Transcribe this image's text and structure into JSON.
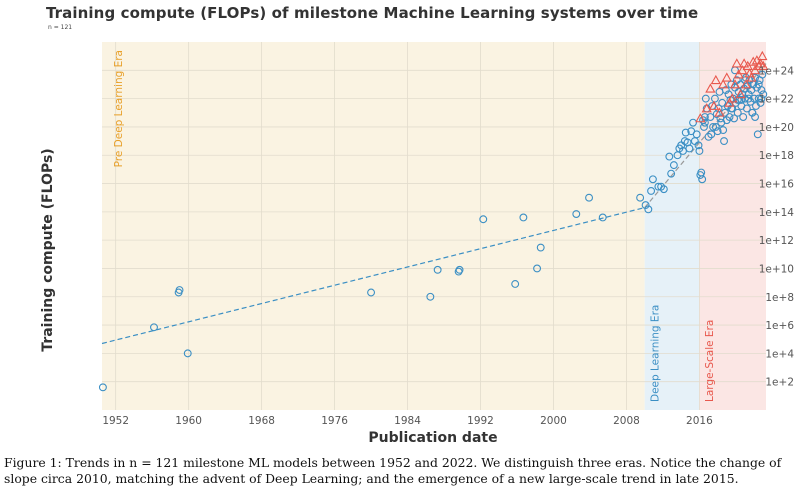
{
  "chart_data": {
    "type": "scatter",
    "title": "Training compute (FLOPs) of milestone Machine Learning systems over time",
    "subtitle": "n = 121",
    "xlabel": "Publication date",
    "ylabel": "Training compute (FLOPs)",
    "xlim": [
      1950.5,
      2023.3
    ],
    "ylim": [
      1,
      100000000000000000000000000
    ],
    "yscale": "log",
    "x_ticks": [
      1952,
      1960,
      1968,
      1976,
      1984,
      1992,
      2000,
      2008,
      2016
    ],
    "y_ticks": [
      "1e+2",
      "1e+4",
      "1e+6",
      "1e+8",
      "1e+10",
      "1e+12",
      "1e+14",
      "1e+16",
      "1e+18",
      "1e+20",
      "1e+22",
      "1e+24"
    ],
    "grid": true,
    "colors": {
      "pre_dl": "#e8a02a",
      "dl": "#3b8fc4",
      "large_scale": "#e8584d",
      "bg_pre_dl": "#faf3e2",
      "bg_dl": "#e6f1f8",
      "bg_large_scale": "#fbe6e4"
    },
    "eras": [
      {
        "label": "Pre Deep Learning Era",
        "from": 1950.5,
        "to": 2010,
        "color": "#e8a02a",
        "bg": "#faf3e2"
      },
      {
        "label": "Deep Learning Era",
        "from": 2010,
        "to": 2016,
        "color": "#3b8fc4",
        "bg": "#e6f1f8"
      },
      {
        "label": "Large-Scale Era",
        "from": 2016,
        "to": 2023.3,
        "color": "#e8584d",
        "bg": "#fbe6e4"
      }
    ],
    "trend_lines": [
      {
        "x": [
          1950.5,
          2010
        ],
        "y": [
          50000,
          200000000000000
        ],
        "color": "#3b8fc4"
      },
      {
        "x": [
          2010,
          2023.3
        ],
        "y": [
          200000000000000,
          3000000000000000000000000
        ],
        "color": "#999999"
      }
    ],
    "series": [
      {
        "marker": "circle",
        "color": "#3b8fc4",
        "x": [
          1950.6,
          1956.2,
          1958.9,
          1959.0,
          1959.9,
          1980.0,
          1986.5,
          1987.3,
          1989.6,
          1989.7,
          1992.3,
          1995.8,
          1996.7,
          1998.2,
          1998.6,
          2002.5,
          2003.9,
          2005.4,
          2009.5,
          2010.1,
          2010.4,
          2010.7,
          2010.9,
          2011.5,
          2011.8,
          2012.1,
          2012.7,
          2012.9,
          2013.2,
          2013.6,
          2013.8,
          2014.0,
          2014.2,
          2014.4,
          2014.5,
          2014.7,
          2014.9,
          2015.1,
          2015.3,
          2015.5,
          2015.7,
          2015.9,
          2016.0,
          2016.1,
          2016.2,
          2016.3,
          2016.5,
          2016.6,
          2016.7,
          2016.8,
          2017.0,
          2017.2,
          2017.4,
          2017.5,
          2017.7,
          2017.9,
          2018.0,
          2018.1,
          2018.2,
          2018.4,
          2018.5,
          2018.6,
          2018.8,
          2018.9,
          2019.0,
          2019.1,
          2019.2,
          2019.3,
          2019.4,
          2019.5,
          2019.6,
          2019.7,
          2019.8,
          2019.9,
          2020.0,
          2020.1,
          2020.2,
          2020.3,
          2020.4,
          2020.5,
          2020.6,
          2020.7,
          2020.8,
          2020.9,
          2021.0,
          2021.1,
          2021.2,
          2021.3,
          2021.4,
          2021.5,
          2021.6,
          2021.7,
          2021.8,
          2021.9,
          2022.0,
          2022.1,
          2022.2,
          2022.3,
          2022.4,
          2022.5,
          2022.6,
          2022.7,
          2022.8,
          2022.9,
          2023.0,
          2016.4,
          2016.6,
          2017.3,
          2018.3,
          2019.5,
          2020.2,
          2021.0,
          2021.8,
          2022.5,
          2019.9,
          2020.6,
          2021.4,
          2022.1,
          2022.8,
          2018.7,
          2017.8
        ],
        "y": [
          40,
          700000,
          200000000,
          300000000,
          10000,
          200000000,
          100000000,
          8000000000,
          6000000000,
          8000000000,
          30000000000000,
          800000000,
          40000000000000,
          10000000000,
          300000000000,
          70000000000000,
          1000000000000000,
          40000000000000,
          1000000000000000,
          300000000000000,
          150000000000000,
          3000000000000000,
          20000000000000000,
          6000000000000000,
          6000000000000000,
          4000000000000000,
          800000000000000000,
          50000000000000000,
          200000000000000000,
          1000000000000000000,
          3000000000000000000,
          5000000000000000000,
          2000000000000000000,
          10000000000000000000,
          40000000000000000000,
          8000000000000000000,
          3000000000000000000,
          50000000000000000000,
          200000000000000000000,
          10000000000000000000,
          30000000000000000000,
          5000000000000000000,
          2000000000000000000,
          40000000000000000,
          60000000000000000,
          20000000000000000,
          100000000000000000000,
          500000000000000000000,
          10000000000000000000000,
          2000000000000000000000,
          20000000000000000000,
          500000000000000000000,
          3000000000000000000000,
          100000000000000000000,
          10000000000000000000000,
          800000000000000000000,
          50000000000000000000,
          2000000000000000000000,
          30000000000000000000000,
          200000000000000000000,
          5000000000000000000000,
          60000000000000000000,
          1000000000000000000000,
          40000000000000000000000,
          300000000000000000000,
          3000000000000000000000,
          20000000000000000000000,
          500000000000000000000,
          8000000000000000000000,
          100000000000000000000000,
          2000000000000000000000,
          10000000000000000000000,
          400000000000000000000,
          60000000000000000000000,
          5000000000000000000000,
          200000000000000000000000,
          1000000000000000000000,
          30000000000000000000000,
          8000000000000000000000,
          100000000000000000000000,
          3000000000000000000000,
          20000000000000000000000,
          500000000000000000000,
          50000000000000000000000,
          10000000000000000000000,
          300000000000000000000000,
          2000000000000000000000,
          80000000000000000000000,
          20000000000000000000000,
          200000000000000000000000,
          6000000000000000000000,
          40000000000000000000000,
          1000000000000000000000,
          100000000000000000000000,
          10000000000000000000000,
          300000000000000000000000,
          3000000000000000000000,
          60000000000000000000000,
          30000000000000000000,
          10000000000000000000000,
          200000000000000000000000,
          5000000000000000000000,
          40000000000000000000000,
          500000000000000000000000,
          20000000000000000000000,
          300000000000000000000,
          200000000000000000000,
          30000000000000000000,
          400000000000000000000,
          2000000000000000000000,
          8000000000000000000000,
          200000000000000000000000,
          1000000000000000000000,
          100000000000000000000000,
          1000000000000000000000000,
          8000000000000000000000,
          10000000000000000000000,
          500000000000000000000,
          10000000000000000000000,
          10000000000000000000,
          100000000000000000000
        ]
      },
      {
        "marker": "triangle",
        "color": "#e8584d",
        "x": [
          2016.1,
          2016.8,
          2017.2,
          2017.6,
          2017.8,
          2018.2,
          2018.6,
          2019.0,
          2019.3,
          2019.6,
          2019.9,
          2020.1,
          2020.3,
          2020.5,
          2020.7,
          2020.9,
          2021.1,
          2021.3,
          2021.5,
          2021.7,
          2021.9,
          2022.1,
          2022.3,
          2022.5,
          2022.7,
          2022.9,
          2023.0
        ],
        "y": [
          400000000000000000000,
          2000000000000000000000,
          50000000000000000000000,
          3000000000000000000000,
          200000000000000000000000,
          1000000000000000000000,
          100000000000000000000000,
          300000000000000000000000,
          5000000000000000000000,
          10000000000000000000000,
          100000000000000000000000,
          3000000000000000000000000,
          500000000000000000000000,
          20000000000000000000000,
          1000000000000000000000000,
          3000000000000000000000000,
          100000000000000000000000,
          2000000000000000000000000,
          600000000000000000000000,
          300000000000000000000000,
          4000000000000000000000000,
          1000000000000000000000000,
          5000000000000000000000000,
          2000000000000000000000000,
          3000000000000000000000000,
          10000000000000000000000000,
          2000000000000000000000000
        ]
      }
    ]
  },
  "caption": {
    "text": "Figure 1: Trends in n = 121 milestone ML models between 1952 and 2022. We distinguish three eras. Notice the change of slope circa 2010, matching the advent of Deep Learning; and the emergence of a new large-scale trend in late 2015."
  }
}
